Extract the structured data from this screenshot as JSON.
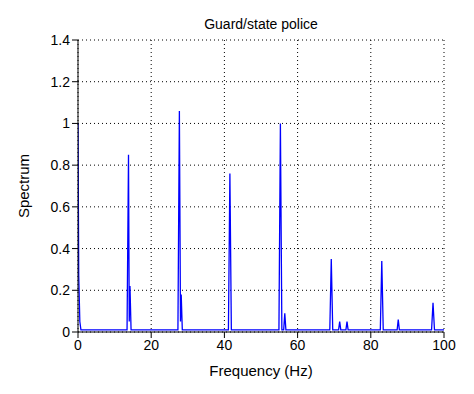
{
  "chart_data": {
    "type": "line",
    "title": "Guard/state police",
    "x_label": "Frequency (Hz)",
    "y_label": "Spectrum",
    "xlim": [
      0,
      100
    ],
    "xticks": [
      0,
      20,
      40,
      60,
      80,
      100
    ],
    "ylim": [
      0,
      1.4
    ],
    "yticks": [
      0,
      0.2,
      0.4,
      0.6,
      0.8,
      1,
      1.2,
      1.4
    ],
    "grid": true,
    "series": [
      {
        "name": "Spectrum",
        "color": "#0000ff",
        "x": [
          0,
          0.2,
          0.5,
          0.8,
          3,
          6,
          9,
          12,
          13.4,
          13.8,
          14.0,
          14.2,
          14.5,
          17,
          20,
          23,
          26,
          27.3,
          27.7,
          28.0,
          28.2,
          28.5,
          31,
          34,
          37,
          40,
          41.1,
          41.5,
          41.9,
          45,
          48,
          51,
          54,
          54.9,
          55.3,
          55.7,
          56.2,
          56.5,
          56.8,
          60,
          63,
          66,
          68.8,
          69.2,
          69.6,
          71.2,
          71.5,
          71.8,
          73.2,
          73.5,
          73.8,
          77,
          80,
          82.6,
          83,
          83.4,
          87.2,
          87.5,
          87.8,
          91,
          94,
          96.6,
          97,
          97.4,
          100
        ],
        "values": [
          1,
          0.27,
          0.05,
          0.01,
          0.01,
          0.01,
          0.01,
          0.01,
          0.01,
          0.85,
          0.05,
          0.22,
          0.01,
          0.01,
          0.01,
          0.01,
          0.01,
          0.01,
          1.06,
          0.05,
          0.18,
          0.01,
          0.01,
          0.01,
          0.01,
          0.01,
          0.01,
          0.76,
          0.01,
          0.01,
          0.01,
          0.01,
          0.01,
          0.01,
          1,
          0.01,
          0.01,
          0.09,
          0.01,
          0.01,
          0.01,
          0.01,
          0.01,
          0.35,
          0.01,
          0.01,
          0.05,
          0.01,
          0.01,
          0.05,
          0.01,
          0.01,
          0.01,
          0.01,
          0.34,
          0.01,
          0.01,
          0.06,
          0.01,
          0.01,
          0.01,
          0.01,
          0.14,
          0.01,
          0.01
        ]
      }
    ]
  }
}
